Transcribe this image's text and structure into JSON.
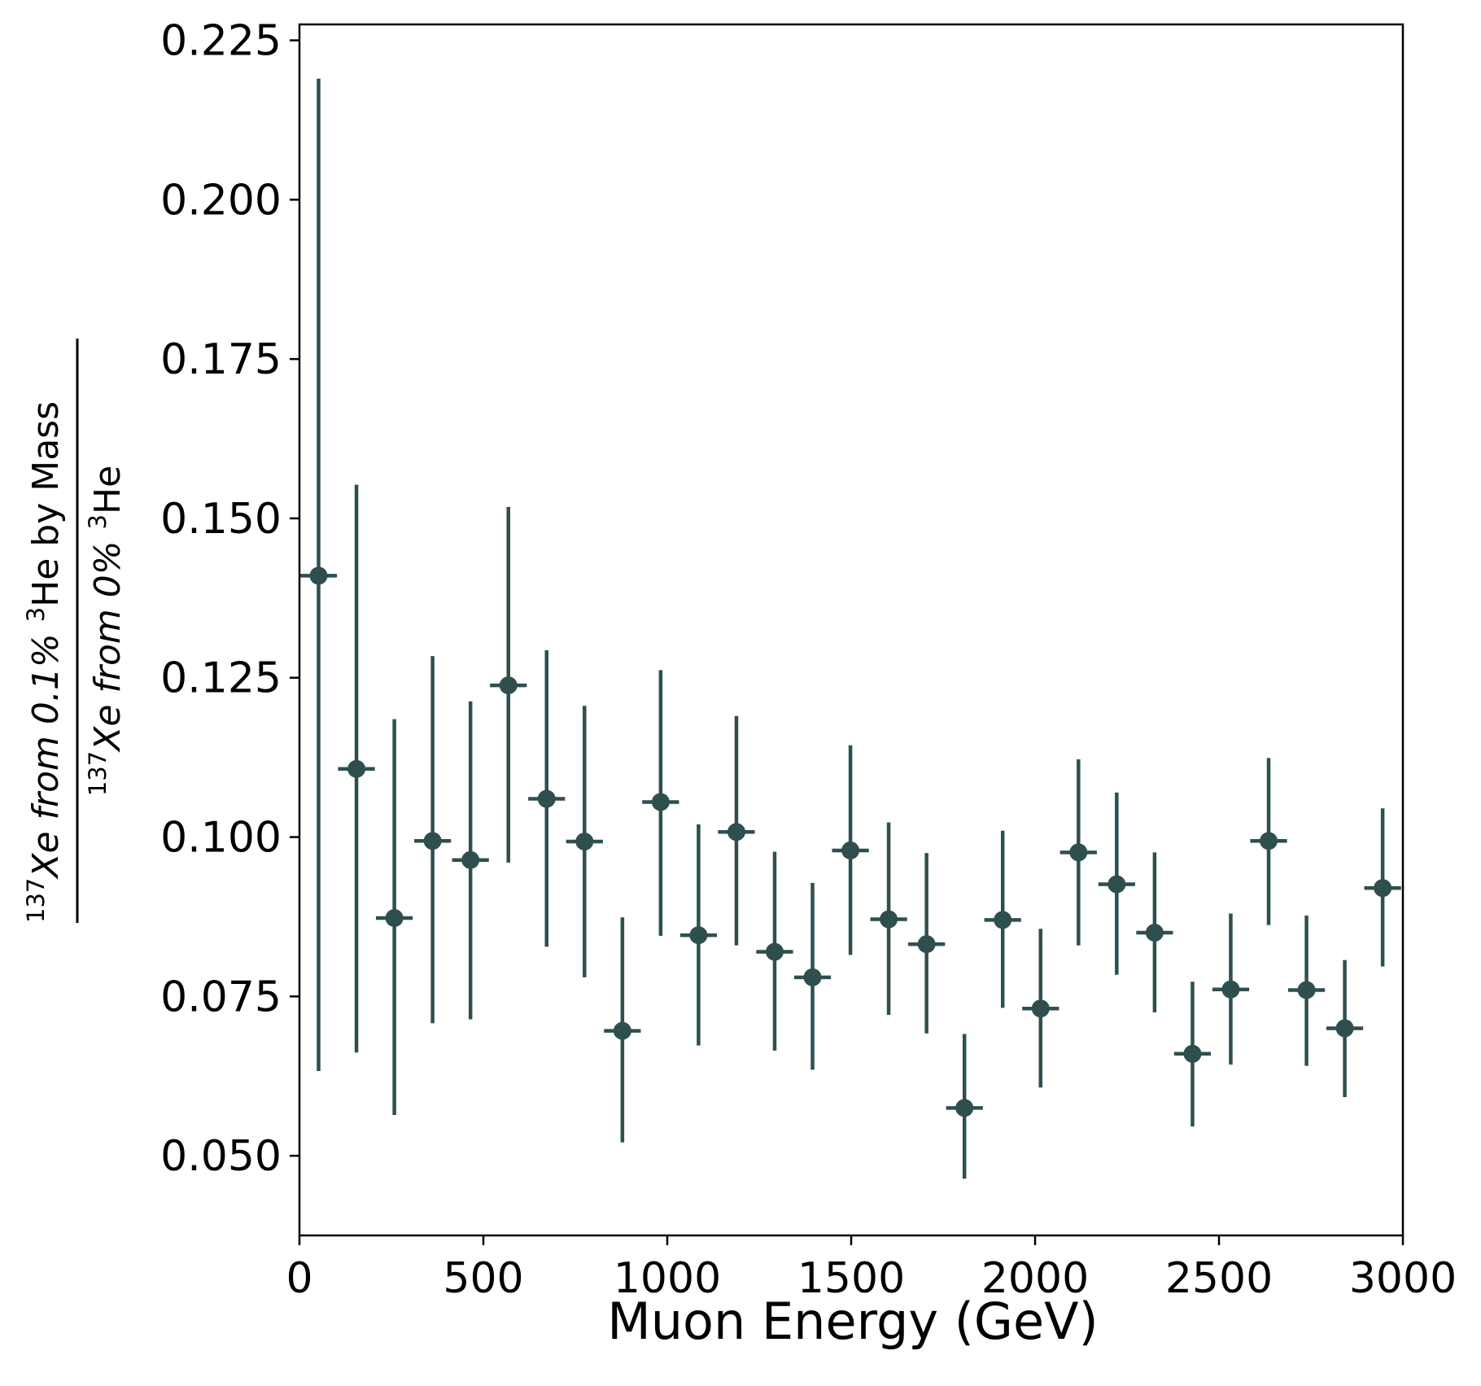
{
  "chart_data": {
    "type": "scatter",
    "title": "",
    "xlabel": "Muon Energy (GeV)",
    "ylabel": {
      "numerator": {
        "sup1": "137",
        "part1": "Xe from 0.1% ",
        "sup2": "3",
        "part2": "He by Mass"
      },
      "denominator": {
        "sup1": "137",
        "part1": "Xe from 0% ",
        "sup2": "3",
        "part2": "He"
      }
    },
    "xlim": [
      0,
      3000
    ],
    "ylim": [
      0.0375,
      0.2275
    ],
    "xticks": [
      "0",
      "500",
      "1000",
      "1500",
      "2000",
      "2500",
      "3000"
    ],
    "yticks": [
      "0.050",
      "0.075",
      "0.100",
      "0.125",
      "0.150",
      "0.175",
      "0.200",
      "0.225"
    ],
    "grid": false,
    "color": "#2f4f4f",
    "x_halfwidth": 50,
    "series": [
      {
        "x": [
          52,
          155,
          258,
          362,
          465,
          568,
          672,
          775,
          878,
          982,
          1085,
          1188,
          1292,
          1395,
          1498,
          1602,
          1705,
          1808,
          1912,
          2015,
          2118,
          2222,
          2325,
          2428,
          2532,
          2635,
          2738,
          2842,
          2945
        ],
        "y": [
          0.141,
          0.1107,
          0.0873,
          0.0994,
          0.0964,
          0.1238,
          0.106,
          0.0993,
          0.0696,
          0.1055,
          0.0846,
          0.1008,
          0.082,
          0.078,
          0.0979,
          0.0871,
          0.0832,
          0.0575,
          0.087,
          0.0731,
          0.0976,
          0.0926,
          0.085,
          0.066,
          0.0761,
          0.0994,
          0.076,
          0.07,
          0.092
        ],
        "y_low": [
          0.0633,
          0.0662,
          0.0564,
          0.0708,
          0.0714,
          0.096,
          0.0828,
          0.078,
          0.0521,
          0.0845,
          0.0673,
          0.083,
          0.0665,
          0.0635,
          0.0815,
          0.0721,
          0.0692,
          0.0464,
          0.0732,
          0.0607,
          0.083,
          0.0784,
          0.0725,
          0.0546,
          0.0643,
          0.0862,
          0.0641,
          0.0592,
          0.0797
        ],
        "y_high": [
          0.219,
          0.1553,
          0.1185,
          0.1284,
          0.1213,
          0.1518,
          0.1293,
          0.1206,
          0.0874,
          0.1262,
          0.102,
          0.119,
          0.0977,
          0.0928,
          0.1144,
          0.1023,
          0.0975,
          0.0691,
          0.101,
          0.0856,
          0.1122,
          0.107,
          0.0976,
          0.0773,
          0.088,
          0.1124,
          0.0877,
          0.0807,
          0.1045
        ]
      }
    ]
  }
}
